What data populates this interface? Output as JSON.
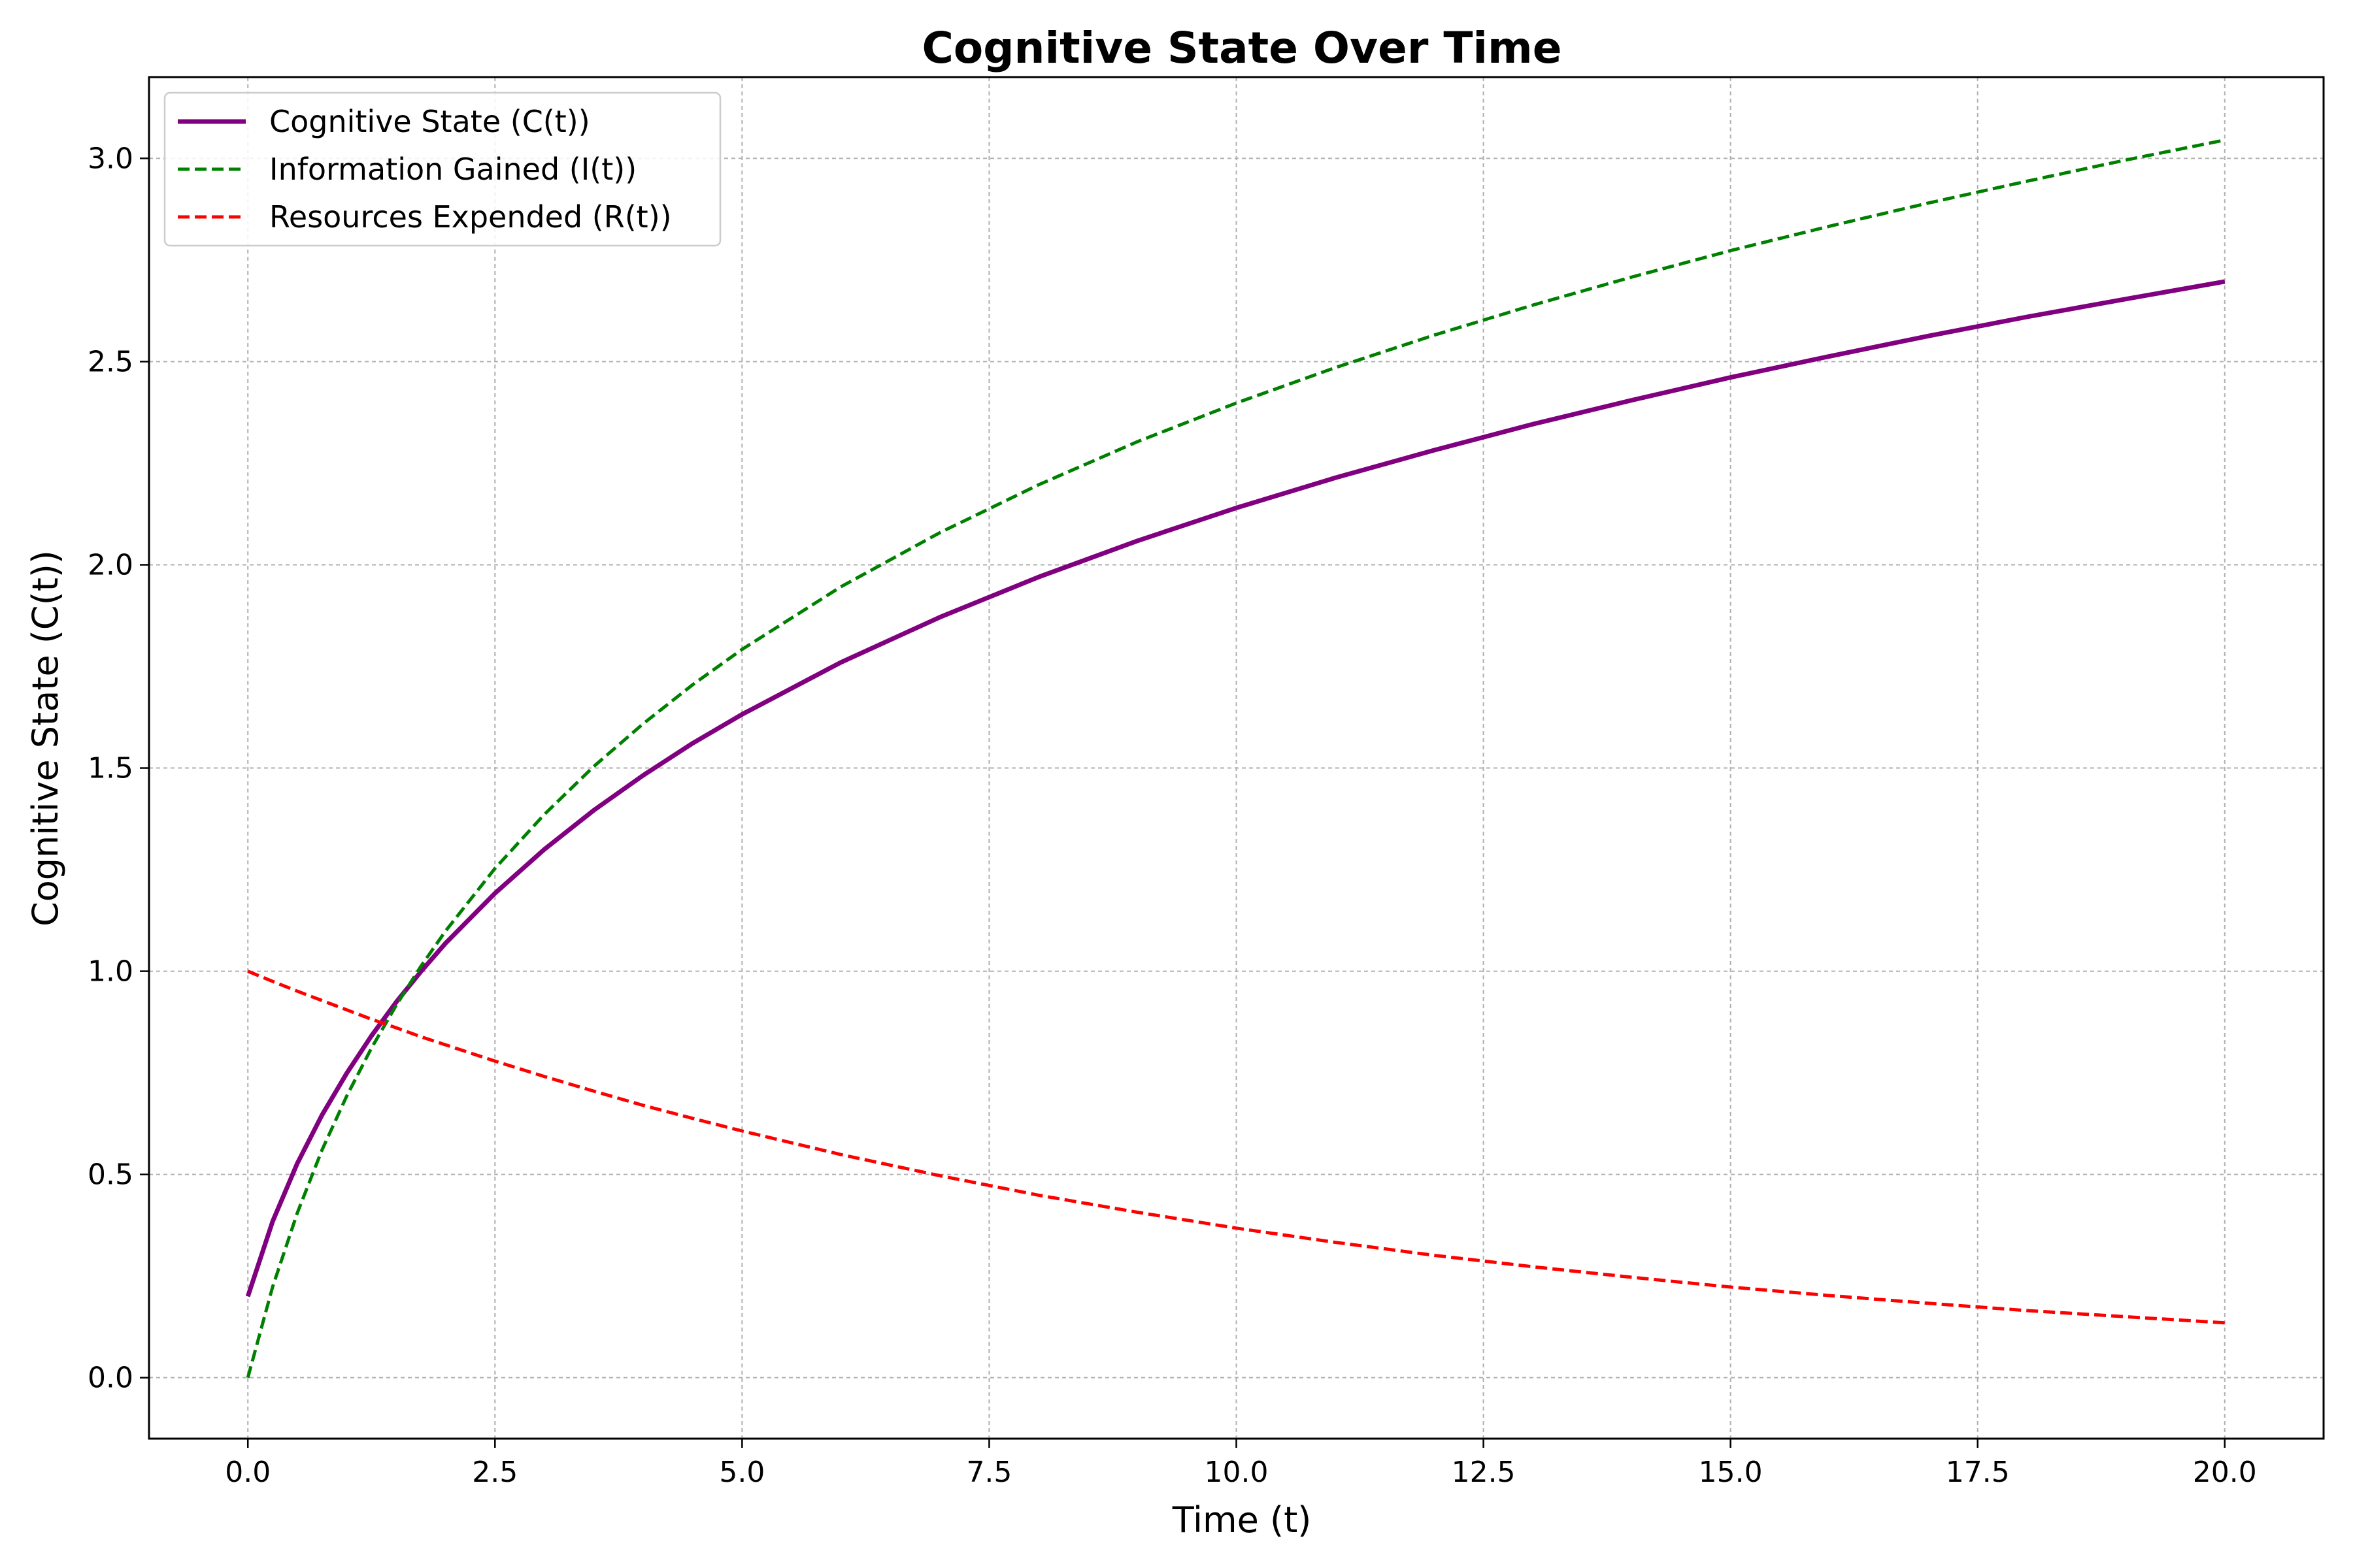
{
  "chart_data": {
    "type": "line",
    "title": "Cognitive State Over Time",
    "xlabel": "Time (t)",
    "ylabel": "Cognitive State (C(t))",
    "xlim": [
      -1.0,
      21.0
    ],
    "ylim": [
      -0.15,
      3.2
    ],
    "x_ticks": [
      "0.0",
      "2.5",
      "5.0",
      "7.5",
      "10.0",
      "12.5",
      "15.0",
      "17.5",
      "20.0"
    ],
    "y_ticks": [
      "0.0",
      "0.5",
      "1.0",
      "1.5",
      "2.0",
      "2.5",
      "3.0"
    ],
    "grid": true,
    "legend_position": "top-left",
    "x": [
      0,
      0.25,
      0.5,
      0.75,
      1,
      1.25,
      1.5,
      1.75,
      2,
      2.5,
      3,
      3.5,
      4,
      4.5,
      5,
      6,
      7,
      8,
      9,
      10,
      11,
      12,
      13,
      14,
      15,
      16,
      17,
      18,
      19,
      20
    ],
    "series": [
      {
        "name": "Cognitive State (C(t))",
        "color": "#800080",
        "style": "solid",
        "values": [
          0.2,
          0.384,
          0.527,
          0.646,
          0.749,
          0.841,
          0.924,
          0.999,
          1.069,
          1.192,
          1.3,
          1.396,
          1.482,
          1.561,
          1.632,
          1.76,
          1.871,
          1.97,
          2.059,
          2.14,
          2.214,
          2.282,
          2.346,
          2.405,
          2.461,
          2.513,
          2.563,
          2.61,
          2.654,
          2.697
        ]
      },
      {
        "name": "Information Gained (I(t))",
        "color": "#008000",
        "style": "dashed",
        "values": [
          0.0,
          0.223,
          0.405,
          0.56,
          0.693,
          0.811,
          0.916,
          1.012,
          1.099,
          1.253,
          1.386,
          1.504,
          1.609,
          1.705,
          1.792,
          1.946,
          2.079,
          2.197,
          2.303,
          2.398,
          2.485,
          2.565,
          2.639,
          2.708,
          2.773,
          2.833,
          2.89,
          2.944,
          2.996,
          3.045
        ]
      },
      {
        "name": "Resources Expended (R(t))",
        "color": "#ff0000",
        "style": "dashed",
        "values": [
          1.0,
          0.975,
          0.951,
          0.928,
          0.905,
          0.882,
          0.861,
          0.839,
          0.819,
          0.779,
          0.741,
          0.705,
          0.67,
          0.638,
          0.607,
          0.549,
          0.497,
          0.449,
          0.407,
          0.368,
          0.333,
          0.301,
          0.273,
          0.247,
          0.223,
          0.202,
          0.183,
          0.165,
          0.15,
          0.135
        ]
      }
    ]
  }
}
